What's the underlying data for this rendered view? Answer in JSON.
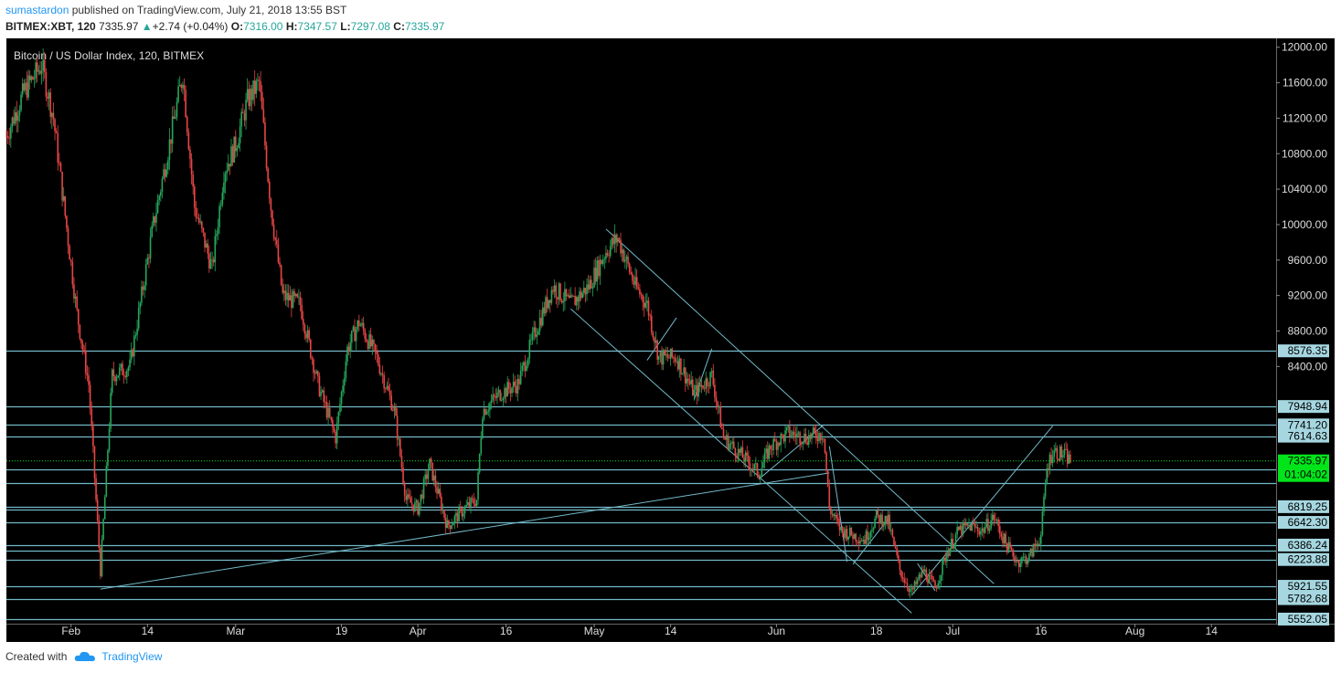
{
  "header": {
    "author": "sumastardon",
    "published": " published on TradingView.com, July 21, 2018 13:55 BST",
    "symbol": "BITMEX:XBT, 120",
    "last": "7335.97",
    "arrow": "▲",
    "change": "+2.74 (+0.04%)",
    "o_label": "O:",
    "o": "7316.00",
    "h_label": "H:",
    "h": "7347.57",
    "l_label": "L:",
    "l": "7297.08",
    "c_label": "C:",
    "c": "7335.97"
  },
  "footer": {
    "created": "Created with",
    "brand": "TradingView"
  },
  "colors": {
    "background": "#000000",
    "up": "#26a65b",
    "down": "#e84545",
    "level": "#72b9c8",
    "price_tag": "#00e51a",
    "axis_tag": "#a6d7e1"
  },
  "chart_data": {
    "type": "candlestick",
    "title": "Bitcoin / US Dollar Index, 120, BITMEX",
    "ylim": [
      5500,
      12100
    ],
    "xlim": [
      "2018-01-21",
      "2018-08-25"
    ],
    "y_ticks": [
      "12000.00",
      "11600.00",
      "11200.00",
      "10800.00",
      "10400.00",
      "10000.00",
      "9600.00",
      "9200.00",
      "8800.00",
      "8400.00"
    ],
    "x_ticks": [
      {
        "label": "Feb",
        "date": "2018-02-01"
      },
      {
        "label": "14",
        "date": "2018-02-14"
      },
      {
        "label": "Mar",
        "date": "2018-03-01"
      },
      {
        "label": "19",
        "date": "2018-03-19"
      },
      {
        "label": "Apr",
        "date": "2018-04-01"
      },
      {
        "label": "16",
        "date": "2018-04-16"
      },
      {
        "label": "May",
        "date": "2018-05-01"
      },
      {
        "label": "14",
        "date": "2018-05-14"
      },
      {
        "label": "Jun",
        "date": "2018-06-01"
      },
      {
        "label": "18",
        "date": "2018-06-18"
      },
      {
        "label": "Jul",
        "date": "2018-07-01"
      },
      {
        "label": "16",
        "date": "2018-07-16"
      },
      {
        "label": "Aug",
        "date": "2018-08-01"
      },
      {
        "label": "14",
        "date": "2018-08-14"
      }
    ],
    "horizontal_levels": [
      {
        "value": 8576.35,
        "label": "8576.35"
      },
      {
        "value": 7948.94,
        "label": "7948.94"
      },
      {
        "value": 7741.2,
        "label": "7741.20"
      },
      {
        "value": 7614.63,
        "label": "7614.63"
      },
      {
        "value": 7240.0,
        "label": ""
      },
      {
        "value": 7085.0,
        "label": ""
      },
      {
        "value": 6819.25,
        "label": "6819.25"
      },
      {
        "value": 6790.0,
        "label": ""
      },
      {
        "value": 6642.3,
        "label": "6642.30"
      },
      {
        "value": 6386.24,
        "label": "6386.24"
      },
      {
        "value": 6320.0,
        "label": ""
      },
      {
        "value": 6223.88,
        "label": "6223.88"
      },
      {
        "value": 5921.55,
        "label": "5921.55"
      },
      {
        "value": 5782.68,
        "label": "5782.68"
      },
      {
        "value": 5552.05,
        "label": "5552.05"
      }
    ],
    "current_price": {
      "value": 7335.97,
      "label": "7335.97",
      "countdown": "01:04:02"
    },
    "price_path": [
      {
        "date": "2018-01-21",
        "price": 11000
      },
      {
        "date": "2018-01-24",
        "price": 11500
      },
      {
        "date": "2018-01-27",
        "price": 11800
      },
      {
        "date": "2018-01-29",
        "price": 11200
      },
      {
        "date": "2018-01-31",
        "price": 10100
      },
      {
        "date": "2018-02-02",
        "price": 9000
      },
      {
        "date": "2018-02-04",
        "price": 8200
      },
      {
        "date": "2018-02-06",
        "price": 6100
      },
      {
        "date": "2018-02-08",
        "price": 8300
      },
      {
        "date": "2018-02-11",
        "price": 8400
      },
      {
        "date": "2018-02-15",
        "price": 10000
      },
      {
        "date": "2018-02-18",
        "price": 11000
      },
      {
        "date": "2018-02-20",
        "price": 11700
      },
      {
        "date": "2018-02-22",
        "price": 10200
      },
      {
        "date": "2018-02-25",
        "price": 9500
      },
      {
        "date": "2018-02-27",
        "price": 10600
      },
      {
        "date": "2018-03-01",
        "price": 10900
      },
      {
        "date": "2018-03-03",
        "price": 11400
      },
      {
        "date": "2018-03-05",
        "price": 11600
      },
      {
        "date": "2018-03-07",
        "price": 10200
      },
      {
        "date": "2018-03-09",
        "price": 9200
      },
      {
        "date": "2018-03-12",
        "price": 9100
      },
      {
        "date": "2018-03-15",
        "price": 8200
      },
      {
        "date": "2018-03-18",
        "price": 7600
      },
      {
        "date": "2018-03-20",
        "price": 8600
      },
      {
        "date": "2018-03-22",
        "price": 8900
      },
      {
        "date": "2018-03-25",
        "price": 8500
      },
      {
        "date": "2018-03-28",
        "price": 7900
      },
      {
        "date": "2018-03-30",
        "price": 6900
      },
      {
        "date": "2018-04-01",
        "price": 6800
      },
      {
        "date": "2018-04-03",
        "price": 7300
      },
      {
        "date": "2018-04-06",
        "price": 6600
      },
      {
        "date": "2018-04-09",
        "price": 6800
      },
      {
        "date": "2018-04-11",
        "price": 6900
      },
      {
        "date": "2018-04-12",
        "price": 7900
      },
      {
        "date": "2018-04-15",
        "price": 8100
      },
      {
        "date": "2018-04-18",
        "price": 8200
      },
      {
        "date": "2018-04-21",
        "price": 8800
      },
      {
        "date": "2018-04-24",
        "price": 9300
      },
      {
        "date": "2018-04-27",
        "price": 9100
      },
      {
        "date": "2018-04-30",
        "price": 9300
      },
      {
        "date": "2018-05-03",
        "price": 9700
      },
      {
        "date": "2018-05-05",
        "price": 9850
      },
      {
        "date": "2018-05-08",
        "price": 9300
      },
      {
        "date": "2018-05-10",
        "price": 9100
      },
      {
        "date": "2018-05-12",
        "price": 8500
      },
      {
        "date": "2018-05-15",
        "price": 8500
      },
      {
        "date": "2018-05-18",
        "price": 8100
      },
      {
        "date": "2018-05-21",
        "price": 8300
      },
      {
        "date": "2018-05-23",
        "price": 7600
      },
      {
        "date": "2018-05-26",
        "price": 7400
      },
      {
        "date": "2018-05-29",
        "price": 7200
      },
      {
        "date": "2018-05-31",
        "price": 7500
      },
      {
        "date": "2018-06-03",
        "price": 7650
      },
      {
        "date": "2018-06-06",
        "price": 7600
      },
      {
        "date": "2018-06-09",
        "price": 7650
      },
      {
        "date": "2018-06-10",
        "price": 6800
      },
      {
        "date": "2018-06-12",
        "price": 6550
      },
      {
        "date": "2018-06-14",
        "price": 6500
      },
      {
        "date": "2018-06-16",
        "price": 6450
      },
      {
        "date": "2018-06-18",
        "price": 6700
      },
      {
        "date": "2018-06-20",
        "price": 6650
      },
      {
        "date": "2018-06-22",
        "price": 6100
      },
      {
        "date": "2018-06-24",
        "price": 5850
      },
      {
        "date": "2018-06-26",
        "price": 6100
      },
      {
        "date": "2018-06-28",
        "price": 5900
      },
      {
        "date": "2018-06-30",
        "price": 6300
      },
      {
        "date": "2018-07-02",
        "price": 6550
      },
      {
        "date": "2018-07-04",
        "price": 6600
      },
      {
        "date": "2018-07-06",
        "price": 6550
      },
      {
        "date": "2018-07-08",
        "price": 6700
      },
      {
        "date": "2018-07-10",
        "price": 6400
      },
      {
        "date": "2018-07-12",
        "price": 6200
      },
      {
        "date": "2018-07-14",
        "price": 6250
      },
      {
        "date": "2018-07-16",
        "price": 6500
      },
      {
        "date": "2018-07-17",
        "price": 7250
      },
      {
        "date": "2018-07-18",
        "price": 7450
      },
      {
        "date": "2018-07-20",
        "price": 7400
      },
      {
        "date": "2018-07-21",
        "price": 7336
      }
    ],
    "trend_lines": [
      {
        "from": {
          "date": "2018-02-06",
          "price": 5890
        },
        "to": {
          "date": "2018-06-10",
          "price": 7200
        }
      },
      {
        "from": {
          "date": "2018-05-03",
          "price": 9950
        },
        "to": {
          "date": "2018-07-08",
          "price": 5950
        }
      },
      {
        "from": {
          "date": "2018-04-27",
          "price": 9050
        },
        "to": {
          "date": "2018-06-24",
          "price": 5620
        }
      },
      {
        "from": {
          "date": "2018-05-29",
          "price": 7130
        },
        "to": {
          "date": "2018-06-09",
          "price": 7740
        }
      },
      {
        "from": {
          "date": "2018-06-14",
          "price": 6170
        },
        "to": {
          "date": "2018-06-20",
          "price": 6680
        }
      },
      {
        "from": {
          "date": "2018-06-24",
          "price": 5820
        },
        "to": {
          "date": "2018-07-18",
          "price": 7730
        }
      },
      {
        "from": {
          "date": "2018-05-10",
          "price": 8470
        },
        "to": {
          "date": "2018-05-15",
          "price": 8950
        }
      },
      {
        "from": {
          "date": "2018-05-18",
          "price": 8030
        },
        "to": {
          "date": "2018-05-21",
          "price": 8600
        }
      },
      {
        "from": {
          "date": "2018-06-10",
          "price": 7500
        },
        "to": {
          "date": "2018-06-13",
          "price": 6200
        }
      },
      {
        "from": {
          "date": "2018-06-25",
          "price": 6180
        },
        "to": {
          "date": "2018-06-28",
          "price": 5870
        }
      }
    ]
  }
}
